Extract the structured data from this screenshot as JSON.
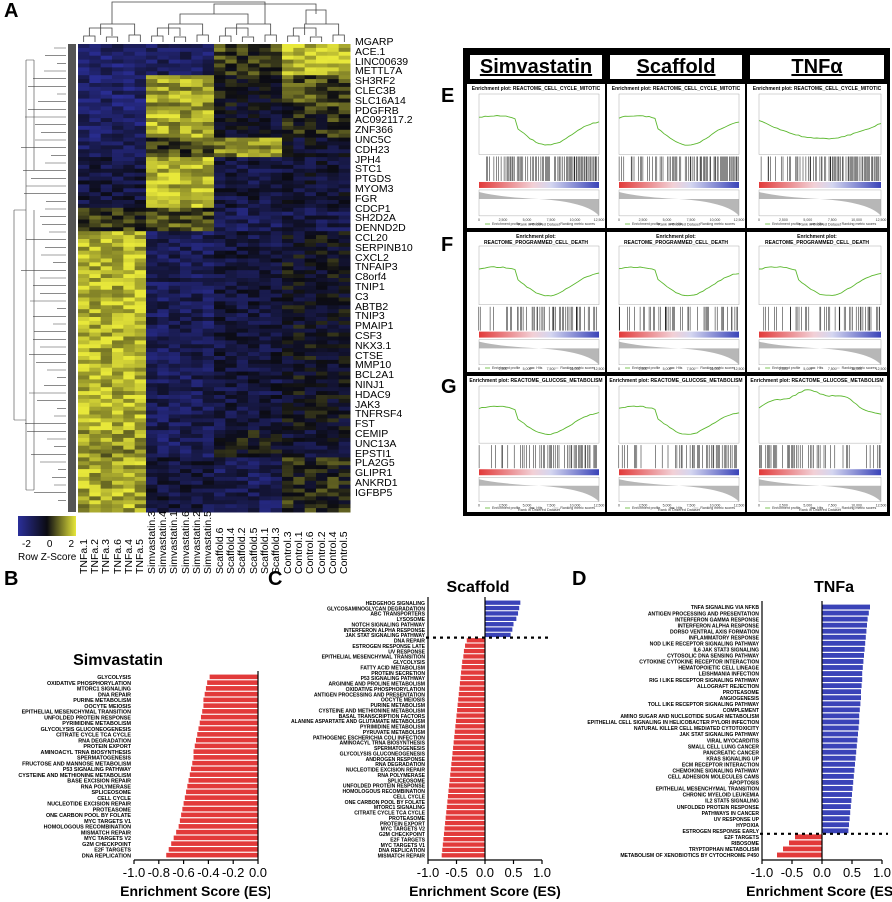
{
  "panels": {
    "A": "A",
    "B": "B",
    "C": "C",
    "D": "D",
    "E": "E",
    "F": "F",
    "G": "G"
  },
  "heatmap": {
    "genes": [
      "MGARP",
      "ACE.1",
      "LINC00639",
      "METTL7A",
      "SH3RF2",
      "CLEC3B",
      "SLC16A14",
      "PDGFRB",
      "AC092117.2",
      "ZNF366",
      "UNC5C",
      "CDH23",
      "JPH4",
      "STC1",
      "PTGDS",
      "MYOM3",
      "FGR",
      "CDCP1",
      "SH2D2A",
      "DENND2D",
      "CCL20",
      "SERPINB10",
      "CXCL2",
      "TNFAIP3",
      "C8orf4",
      "TNIP1",
      "C3",
      "ABTB2",
      "TNIP3",
      "PMAIP1",
      "CSF3",
      "NKX3.1",
      "CTSE",
      "MMP10",
      "BCL2A1",
      "NINJ1",
      "HDAC9",
      "JAK3",
      "TNFRSF4",
      "FST",
      "CEMIP",
      "UNC13A",
      "EPSTI1",
      "PLA2G5",
      "GLIPR1",
      "ANKRD1",
      "IGFBP5"
    ],
    "samples": [
      "TNFa.1",
      "TNFa.2",
      "TNFa.3",
      "TNFa.6",
      "TNFa.4",
      "TNFa.5",
      "Simvastatin.3",
      "Simvastatin.4",
      "Simvastatin.1",
      "Simvastatin.6",
      "Simvastatin.2",
      "Simvastatin.5",
      "Scaffold.6",
      "Scaffold.4",
      "Scaffold.2",
      "Scaffold.5",
      "Scaffold.1",
      "Scaffold.3",
      "Control.3",
      "Control.1",
      "Control.6",
      "Control.2",
      "Control.4",
      "Control.5"
    ],
    "legend_title": "Row Z-Score",
    "legend_ticks": [
      "-2",
      "0",
      "2"
    ],
    "colors": {
      "low": "#2b2f9a",
      "mid": "#0b0b12",
      "high": "#e8e83a"
    }
  },
  "gsea": {
    "columns": [
      "Simvastatin",
      "Scaffold",
      "TNFα"
    ],
    "row_labels": [
      "E",
      "F",
      "G"
    ],
    "plot_titles": {
      "E": "Enrichment plot: REACTOME_CELL_CYCLE_MITOTIC",
      "F1": "Enrichment plot:",
      "F2": "REACTOME_PROGRAMMED_CELL_DEATH",
      "G": "Enrichment plot: REACTOME_GLUCOSE_METABOLISM"
    },
    "ylabel_top": "Enrichment score (ES)",
    "ylabel_bottom": "Ranked list metric (PreRanked)",
    "xlabel": "Rank in Ordered Dataset",
    "legend": [
      "Enrichment profile",
      "Hits",
      "Ranking metric scores"
    ],
    "x_ticks": [
      "0",
      "2,500",
      "5,000",
      "7,500",
      "10,000",
      "12,500"
    ],
    "colors": {
      "line": "#5cb82f",
      "pos": "#e23a3a",
      "neg": "#3a43b8"
    }
  },
  "chart_data": [
    {
      "type": "bar",
      "panel": "B",
      "title": "Simvastatin",
      "xlabel": "Enrichment Score (ES)",
      "xlim": [
        -1.0,
        0.0
      ],
      "x_ticks": [
        "-1.0",
        "-0.8",
        "-0.6",
        "-0.4",
        "-0.2",
        "0.0"
      ],
      "categories": [
        "GLYCOLYSIS",
        "OXIDATIVE PHOSPHORYLATION",
        "MTORC1 SIGNALING",
        "DNA REPAIR",
        "PURINE METABOLISM",
        "OOCYTE MEIOSIS",
        "EPITHELIAL MESENCHYMAL TRANSITION",
        "UNFOLDED PROTEIN RESPONSE",
        "PYRIMIDINE METABOLISM",
        "GLYCOLYSIS GLUCONEOGENESIS",
        "CITRATE CYCLE TCA CYCLE",
        "RNA DEGRADATION",
        "PROTEIN EXPORT",
        "AMINOACYL TRNA BIOSYNTHESIS",
        "SPERMATOGENESIS",
        "FRUCTOSE AND MANNOSE METABOLISM",
        "P53 SIGNALING PATHWAY",
        "CYSTEINE AND METHIONINE METABOLISM",
        "BASE EXCISION REPAIR",
        "RNA POLYMERASE",
        "SPLICEOSOME",
        "CELL CYCLE",
        "NUCLEOTIDE EXCISION REPAIR",
        "PROTEASOME",
        "ONE CARBON POOL BY FOLATE",
        "MYC TARGETS V1",
        "HOMOLOGOUS RECOMBINATION",
        "MISMATCH REPAIR",
        "MYC TARGETS V2",
        "G2M CHECKPOINT",
        "E2F TARGETS",
        "DNA REPLICATION"
      ],
      "values": [
        -0.39,
        -0.41,
        -0.42,
        -0.43,
        -0.44,
        -0.44,
        -0.45,
        -0.46,
        -0.47,
        -0.48,
        -0.49,
        -0.5,
        -0.51,
        -0.52,
        -0.52,
        -0.53,
        -0.54,
        -0.55,
        -0.56,
        -0.57,
        -0.58,
        -0.59,
        -0.6,
        -0.61,
        -0.62,
        -0.63,
        -0.64,
        -0.66,
        -0.68,
        -0.7,
        -0.72,
        -0.74
      ]
    },
    {
      "type": "bar",
      "panel": "C",
      "title": "Scaffold",
      "xlabel": "Enrichment Score (ES)",
      "xlim": [
        -1.0,
        1.0
      ],
      "x_ticks": [
        "-1.0",
        "-0.5",
        "0.0",
        "0.5",
        "1.0"
      ],
      "categories": [
        "HEDGEHOG SIGNALING",
        "GLYCOSAMINOGLYCAN DEGRADATION",
        "ABC TRANSPORTERS",
        "LYSOSOME",
        "NOTCH SIGNALING PATHWAY",
        "INTERFERON ALPHA RESPONSE",
        "JAK STAT SIGNALING PATHWAY",
        "DNA REPAIR",
        "ESTROGEN RESPONSE LATE",
        "UV RESPONSE",
        "EPITHELIAL MESENCHYMAL TRANSITION",
        "GLYCOLYSIS",
        "FATTY ACID METABOLISM",
        "PROTEIN SECRETION",
        "P53 SIGNALING PATHWAY",
        "ARGININE AND PROLINE METABOLISM",
        "OXIDATIVE PHOSPHORYLATION",
        "ANTIGEN PROCESSING AND PRESENTATION",
        "OOCYTE MEIOSIS",
        "PURINE METABOLISM",
        "CYSTEINE AND METHIONINE METABOLISM",
        "BASAL TRANSCRIPTION FACTORS",
        "ALANINE ASPARTATE AND GLUTAMATE METABOLISM",
        "PYRIMIDINE METABOLISM",
        "PYRUVATE METABOLISM",
        "PATHOGENIC ESCHERICHIA COLI INFECTION",
        "AMINOACYL TRNA BIOSYNTHESIS",
        "SPERMATOGENESIS",
        "GLYCOLYSIS GLUCONEOGENESIS",
        "ANDROGEN RESPONSE",
        "RNA DEGRADATION",
        "NUCLEOTIDE EXCISION REPAIR",
        "RNA POLYMERASE",
        "SPLICEOSOME",
        "UNFOLDED PROTEIN RESPONSE",
        "HOMOLOGOUS RECOMBINATION",
        "CELL CYCLE",
        "ONE CARBON POOL BY FOLATE",
        "MTORC1 SIGNALING",
        "CITRATE CYCLE TCA CYCLE",
        "PROTEASOME",
        "PROTEIN EXPORT",
        "MYC TARGETS V2",
        "G2M CHECKPOINT",
        "E2F TARGETS",
        "MYC TARGETS V1",
        "DNA REPLICATION",
        "MISMATCH REPAIR"
      ],
      "values": [
        0.62,
        0.6,
        0.58,
        0.55,
        0.5,
        0.48,
        0.45,
        -0.32,
        -0.35,
        -0.37,
        -0.38,
        -0.4,
        -0.41,
        -0.42,
        -0.43,
        -0.44,
        -0.45,
        -0.46,
        -0.47,
        -0.48,
        -0.49,
        -0.5,
        -0.51,
        -0.52,
        -0.53,
        -0.54,
        -0.55,
        -0.56,
        -0.57,
        -0.58,
        -0.59,
        -0.6,
        -0.61,
        -0.62,
        -0.63,
        -0.64,
        -0.65,
        -0.66,
        -0.67,
        -0.68,
        -0.69,
        -0.7,
        -0.71,
        -0.72,
        -0.73,
        -0.74,
        -0.75,
        -0.76
      ],
      "divider_after_index": 6
    },
    {
      "type": "bar",
      "panel": "D",
      "title": "TNFa",
      "xlabel": "Enrichment Score (ES)",
      "xlim": [
        -1.0,
        1.0
      ],
      "x_ticks": [
        "-1.0",
        "-0.5",
        "0.0",
        "0.5",
        "1.0"
      ],
      "categories": [
        "TNFA SIGNALING VIA NFKB",
        "ANTIGEN PROCESSING AND PRESENTATION",
        "INTERFERON GAMMA RESPONSE",
        "INTERFERON ALPHA RESPONSE",
        "DORSO VENTRAL AXIS FORMATION",
        "INFLAMMATORY RESPONSE",
        "NOD LIKE RECEPTOR SIGNALING PATHWAY",
        "IL6 JAK STAT3 SIGNALING",
        "CYTOSOLIC DNA SENSING PATHWAY",
        "CYTOKINE CYTOKINE RECEPTOR INTERACTION",
        "HEMATOPOIETIC CELL LINEAGE",
        "LEISHMANIA INFECTION",
        "RIG I LIKE RECEPTOR SIGNALING PATHWAY",
        "ALLOGRAFT REJECTION",
        "PROTEASOME",
        "ANGIOGENESIS",
        "TOLL LIKE RECEPTOR SIGNALING PATHWAY",
        "COMPLEMENT",
        "AMINO SUGAR AND NUCLEOTIDE SUGAR METABOLISM",
        "EPITHELIAL CELL SIGNALING IN HELICOBACTER PYLORI INFECTION",
        "NATURAL KILLER CELL MEDIATED CYTOTOXICITY",
        "JAK STAT SIGNALING PATHWAY",
        "VIRAL MYOCARDITIS",
        "SMALL CELL LUNG CANCER",
        "PANCREATIC CANCER",
        "KRAS SIGNALING UP",
        "ECM RECEPTOR INTERACTION",
        "CHEMOKINE SIGNALING PATHWAY",
        "CELL ADHESION MOLECULES CAMS",
        "APOPTOSIS",
        "EPITHELIAL MESENCHYMAL TRANSITION",
        "CHRONIC MYELOID LEUKEMIA",
        "IL2 STAT5 SIGNALING",
        "UNFOLDED PROTEIN RESPONSE",
        "PATHWAYS IN CANCER",
        "UV RESPONSE UP",
        "HYPOXIA",
        "ESTROGEN RESPONSE EARLY",
        "E2F TARGETS",
        "RIBOSOME",
        "TRYPTOPHAN METABOLISM",
        "METABOLISM OF XENOBIOTICS BY CYTOCHROME P450"
      ],
      "values": [
        0.8,
        0.78,
        0.76,
        0.75,
        0.74,
        0.73,
        0.72,
        0.71,
        0.7,
        0.69,
        0.68,
        0.67,
        0.67,
        0.66,
        0.65,
        0.65,
        0.64,
        0.63,
        0.62,
        0.62,
        0.61,
        0.6,
        0.59,
        0.58,
        0.57,
        0.56,
        0.55,
        0.54,
        0.53,
        0.52,
        0.51,
        0.5,
        0.49,
        0.48,
        0.47,
        0.46,
        0.45,
        0.44,
        -0.45,
        -0.55,
        -0.65,
        -0.75
      ],
      "divider_after_index": 37
    }
  ]
}
